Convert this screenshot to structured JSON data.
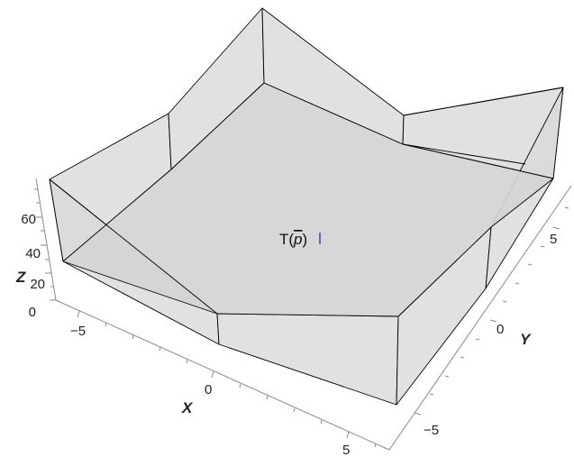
{
  "plot": {
    "point_label": "T(p)",
    "point_label_base": "T(",
    "point_label_var": "p",
    "point_label_close": ")",
    "axes": {
      "x": {
        "label": "X",
        "ticks": [
          "−5",
          "0",
          "5"
        ]
      },
      "y": {
        "label": "Y",
        "ticks": [
          "−5",
          "0",
          "5"
        ]
      },
      "z": {
        "label": "Z",
        "ticks": [
          "0",
          "20",
          "40",
          "60"
        ]
      }
    },
    "colors": {
      "surface": "#d9d9d9",
      "edges": "#000000",
      "point_marker": "#2b3ea8",
      "axis": "#8a8a8a"
    }
  }
}
